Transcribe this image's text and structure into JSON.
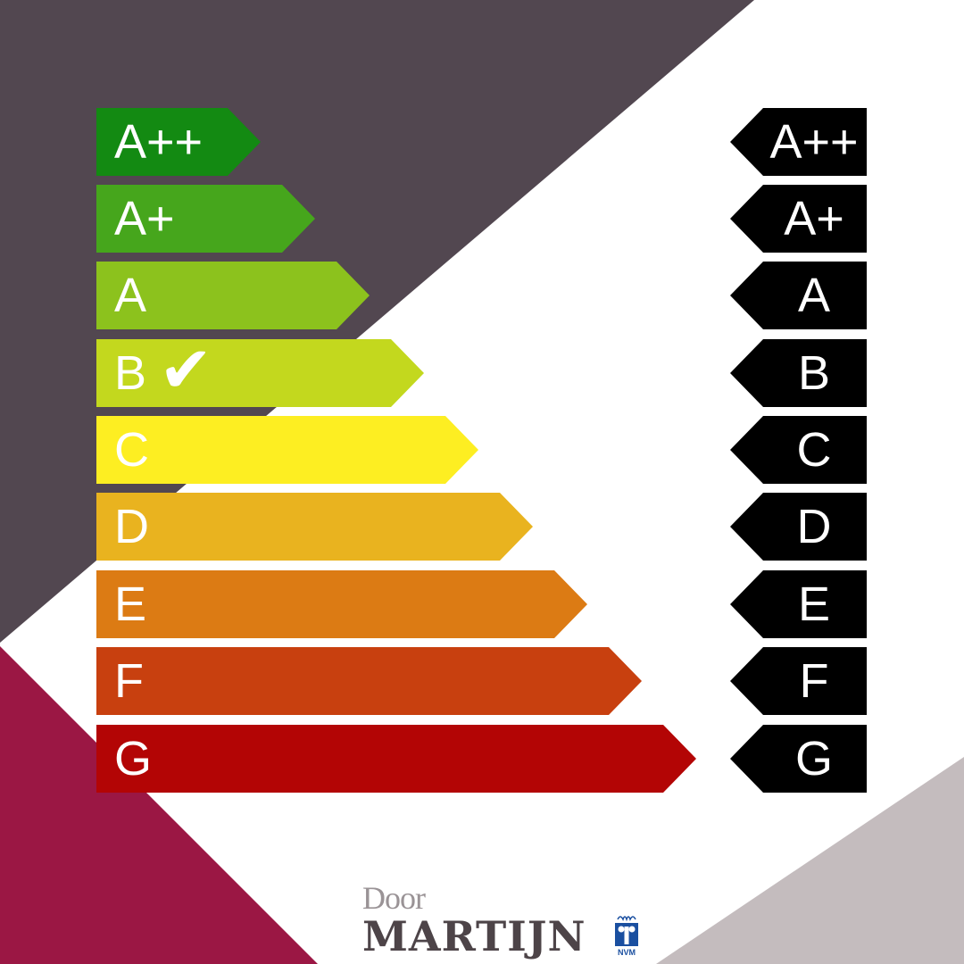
{
  "colors": {
    "dark": "#524750",
    "maroon": "#9b1744",
    "light": "#c4bcbe"
  },
  "labels": [
    {
      "label": "A++",
      "color": "#138a12"
    },
    {
      "label": "A+",
      "color": "#46a61c"
    },
    {
      "label": "A",
      "color": "#8cc21d"
    },
    {
      "label": "B",
      "color": "#c3d81e",
      "checked": true
    },
    {
      "label": "C",
      "color": "#fdee22"
    },
    {
      "label": "D",
      "color": "#e9b31f"
    },
    {
      "label": "E",
      "color": "#dc7b14"
    },
    {
      "label": "F",
      "color": "#c8400f"
    },
    {
      "label": "G",
      "color": "#b30505"
    }
  ],
  "check_mark": "✔",
  "logo": {
    "door": "Door",
    "name": "MARTIJN",
    "badge": "NVM"
  }
}
